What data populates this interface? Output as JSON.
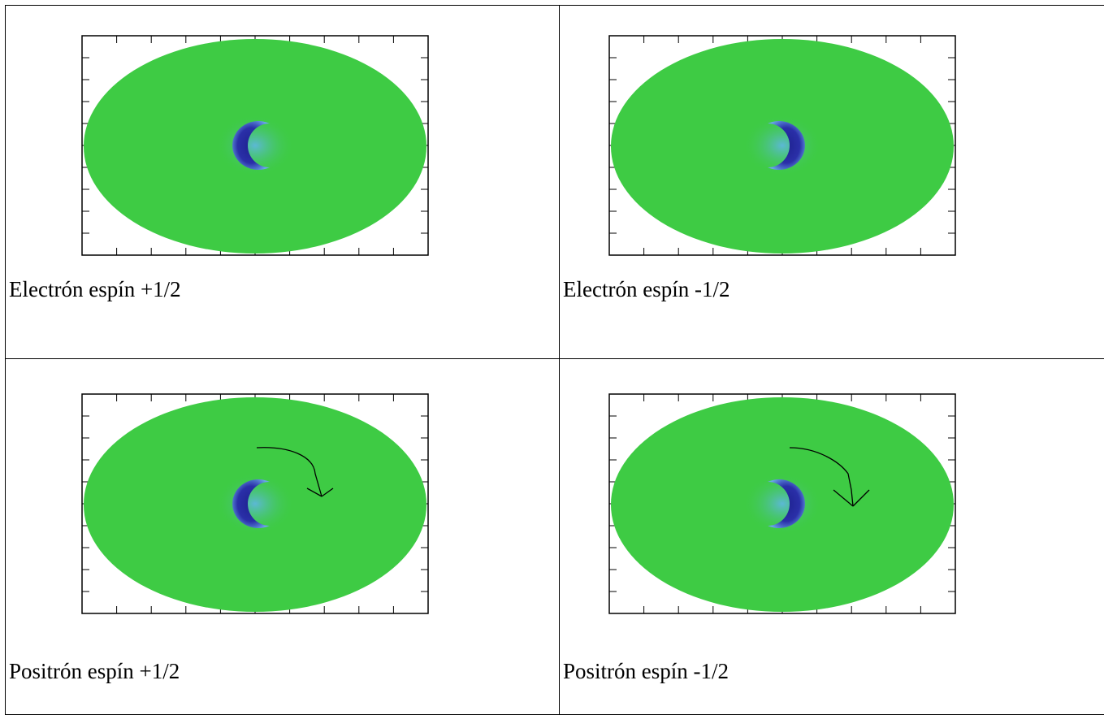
{
  "cells": [
    {
      "caption": "Electrón espín +1/2",
      "spin": "+1/2",
      "orientation": "left",
      "particle": "electron",
      "arrow": false
    },
    {
      "caption": "Electrón espín -1/2",
      "spin": "-1/2",
      "orientation": "right",
      "particle": "electron",
      "arrow": false
    },
    {
      "caption": "Positrón espín +1/2",
      "spin": "+1/2",
      "orientation": "left",
      "particle": "positron",
      "arrow": true
    },
    {
      "caption": "Positrón espín -1/2",
      "spin": "-1/2",
      "orientation": "right",
      "particle": "positron",
      "arrow": true
    }
  ],
  "colors": {
    "disk": "#3ecb44",
    "crescent": "#2a2fa8",
    "crescent_glow": "#5fb6e6",
    "frame": "#000000",
    "arrow": "#000000"
  }
}
